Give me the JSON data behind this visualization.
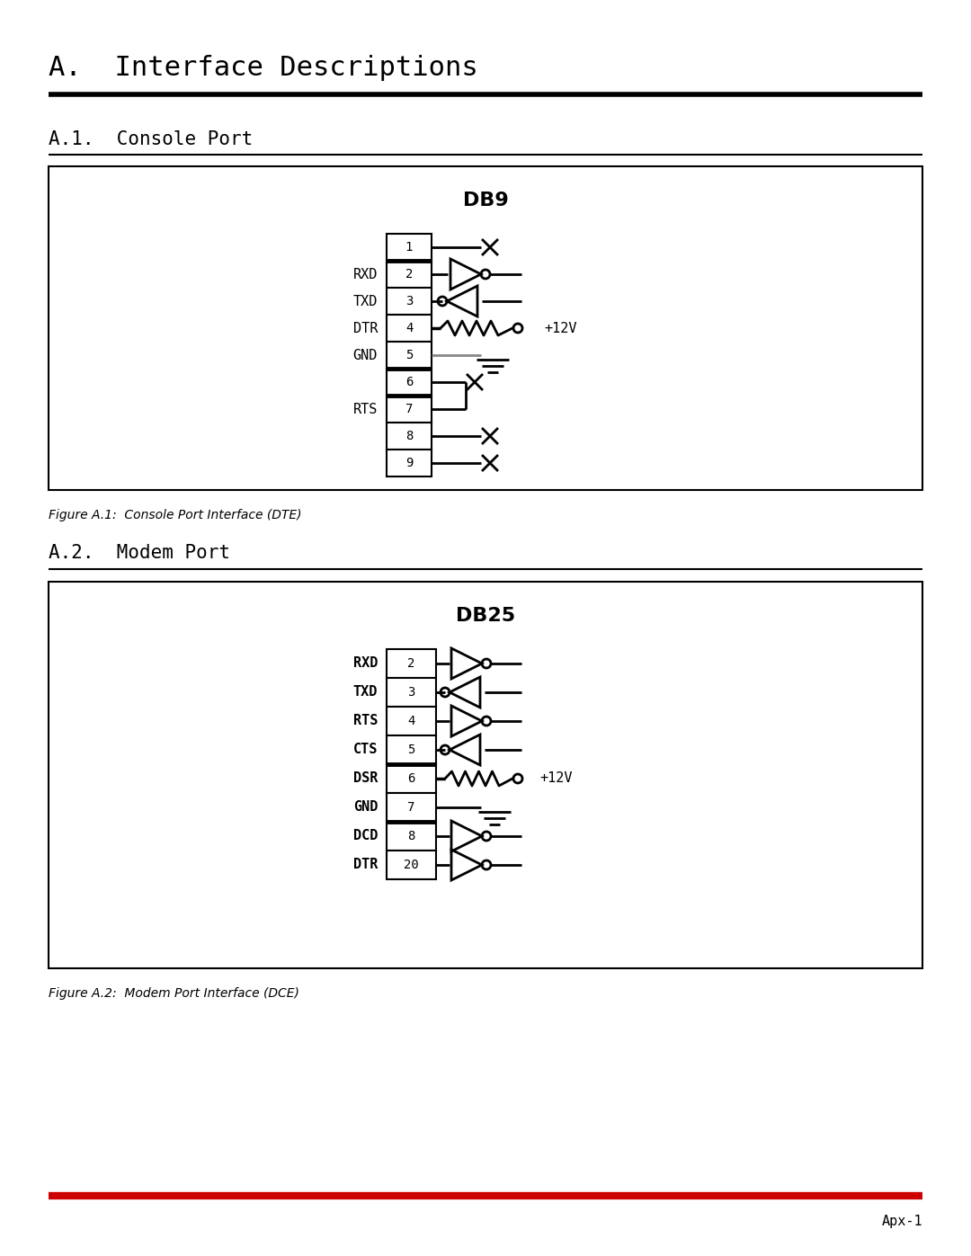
{
  "title_main": "A.  Interface Descriptions",
  "title_sec1": "A.1.  Console Port",
  "title_sec2": "A.2.  Modem Port",
  "fig_caption1": "Figure A.1:  Console Port Interface (DTE)",
  "fig_caption2": "Figure A.2:  Modem Port Interface (DCE)",
  "page_number": "Apx-1",
  "db9_label": "DB9",
  "db25_label": "DB25",
  "bg_color": "#ffffff",
  "red_color": "#cc0000",
  "gray_color": "#888888"
}
